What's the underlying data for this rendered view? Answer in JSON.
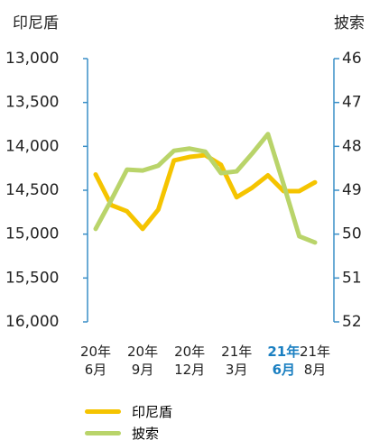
{
  "chart_data": {
    "type": "line",
    "y_axis_label": "印尼盾",
    "y2_axis_label": "披索",
    "categories": [
      "20年 6月",
      null,
      null,
      "20年 9月",
      null,
      null,
      "20年 12月",
      null,
      null,
      "21年 3月",
      null,
      null,
      "21年 6月",
      null,
      "21年 8月"
    ],
    "highlight": {
      "index": 12,
      "color": "#1a7fc1"
    },
    "series": [
      {
        "name": "印尼盾",
        "color": "#f5c400",
        "values": [
          14320,
          14670,
          14740,
          14940,
          14720,
          14160,
          14120,
          14100,
          14210,
          14580,
          14470,
          14330,
          14510,
          14510,
          14410
        ]
      },
      {
        "name": "披索",
        "color": "#b9d46a",
        "axis": "y2",
        "values": [
          49.88,
          49.22,
          48.53,
          48.55,
          48.44,
          48.1,
          48.05,
          48.12,
          48.61,
          48.57,
          48.16,
          47.72,
          48.87,
          50.05,
          50.19
        ]
      }
    ],
    "ylim": [
      13000,
      16000
    ],
    "y_inverted": true,
    "yticks": [
      {
        "value": 13000,
        "label": "13,000"
      },
      {
        "value": 13500,
        "label": "13,500"
      },
      {
        "value": 14000,
        "label": "14,000"
      },
      {
        "value": 14500,
        "label": "14,500"
      },
      {
        "value": 15000,
        "label": "15,000"
      },
      {
        "value": 15500,
        "label": "15,500"
      },
      {
        "value": 16000,
        "label": "16,000"
      }
    ],
    "y2lim": [
      46,
      52
    ],
    "y2_inverted": true,
    "y2ticks": [
      46,
      47,
      48,
      49,
      50,
      51,
      52
    ],
    "axis_color": "#3a8fc7"
  }
}
